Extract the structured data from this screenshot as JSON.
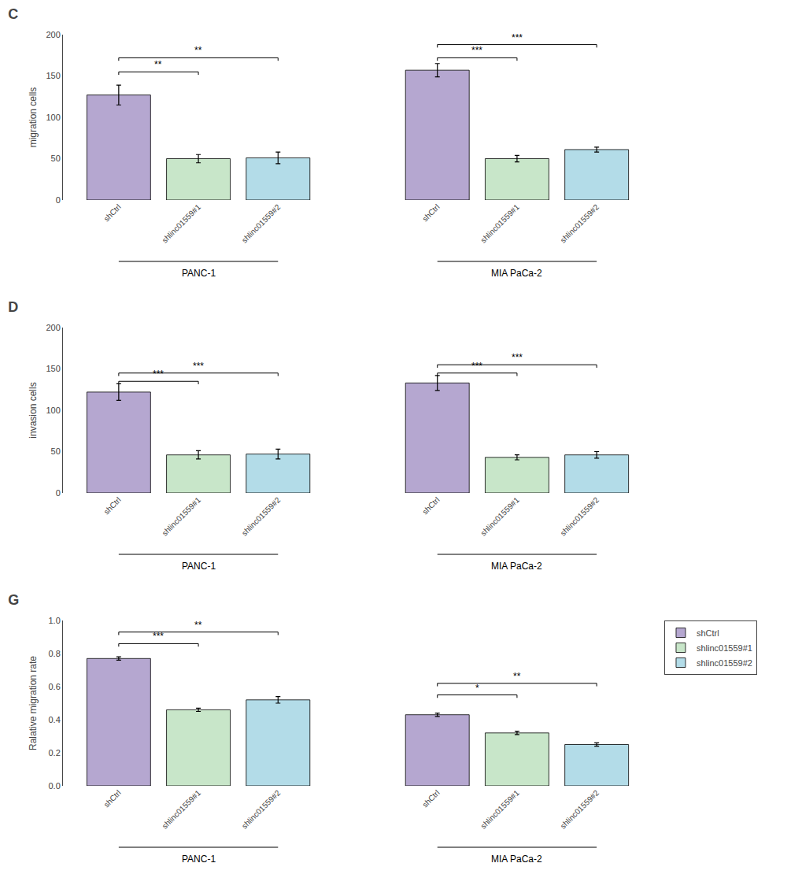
{
  "chart_data": [
    {
      "type": "bar",
      "title": "C",
      "ylabel": "migration cells",
      "categories": [
        "PANC-1",
        "MIA PaCa-2"
      ],
      "series": [
        {
          "name": "shCtrl",
          "color": "#b5a7d0",
          "values": [
            127,
            157
          ],
          "errors": [
            12,
            8
          ]
        },
        {
          "name": "shlinc01559#1",
          "color": "#c8e6c9",
          "values": [
            50,
            50
          ],
          "errors": [
            5,
            4
          ]
        },
        {
          "name": "shlinc01559#2",
          "color": "#b3dce8",
          "values": [
            51,
            61
          ],
          "errors": [
            7,
            3
          ]
        }
      ],
      "ylim": [
        0,
        200
      ],
      "yticks": [
        0,
        50,
        100,
        150,
        200
      ],
      "annotations": [
        {
          "text": "**",
          "group": "PANC-1",
          "from": "shCtrl",
          "to": "shlinc01559#1",
          "y": 155
        },
        {
          "text": "**",
          "group": "PANC-1",
          "from": "shCtrl",
          "to": "shlinc01559#2",
          "y": 172
        },
        {
          "text": "***",
          "group": "MIA PaCa-2",
          "from": "shCtrl",
          "to": "shlinc01559#1",
          "y": 172
        },
        {
          "text": "***",
          "group": "MIA PaCa-2",
          "from": "shCtrl",
          "to": "shlinc01559#2",
          "y": 188
        }
      ],
      "grid": false,
      "legend": false
    },
    {
      "type": "bar",
      "title": "D",
      "ylabel": "invasion cells",
      "categories": [
        "PANC-1",
        "MIA PaCa-2"
      ],
      "series": [
        {
          "name": "shCtrl",
          "color": "#b5a7d0",
          "values": [
            122,
            133
          ],
          "errors": [
            10,
            9
          ]
        },
        {
          "name": "shlinc01559#1",
          "color": "#c8e6c9",
          "values": [
            46,
            43
          ],
          "errors": [
            5,
            3
          ]
        },
        {
          "name": "shlinc01559#2",
          "color": "#b3dce8",
          "values": [
            47,
            46
          ],
          "errors": [
            6,
            4
          ]
        }
      ],
      "ylim": [
        0,
        200
      ],
      "yticks": [
        0,
        50,
        100,
        150,
        200
      ],
      "annotations": [
        {
          "text": "***",
          "group": "PANC-1",
          "from": "shCtrl",
          "to": "shlinc01559#1",
          "y": 135
        },
        {
          "text": "***",
          "group": "PANC-1",
          "from": "shCtrl",
          "to": "shlinc01559#2",
          "y": 145
        },
        {
          "text": "***",
          "group": "MIA PaCa-2",
          "from": "shCtrl",
          "to": "shlinc01559#1",
          "y": 145
        },
        {
          "text": "***",
          "group": "MIA PaCa-2",
          "from": "shCtrl",
          "to": "shlinc01559#2",
          "y": 155
        }
      ],
      "grid": false,
      "legend": false
    },
    {
      "type": "bar",
      "title": "G",
      "ylabel": "Ralative migration rate",
      "categories": [
        "PANC-1",
        "MIA PaCa-2"
      ],
      "series": [
        {
          "name": "shCtrl",
          "color": "#b5a7d0",
          "values": [
            0.77,
            0.43
          ],
          "errors": [
            0.01,
            0.01
          ]
        },
        {
          "name": "shlinc01559#1",
          "color": "#c8e6c9",
          "values": [
            0.46,
            0.32
          ],
          "errors": [
            0.01,
            0.01
          ]
        },
        {
          "name": "shlinc01559#2",
          "color": "#b3dce8",
          "values": [
            0.52,
            0.25
          ],
          "errors": [
            0.02,
            0.01
          ]
        }
      ],
      "ylim": [
        0.0,
        1.0
      ],
      "yticks": [
        {
          "value": 0,
          "label": "0.0"
        },
        0.2,
        0.4,
        0.6,
        0.8,
        {
          "value": 1,
          "label": "1.0"
        }
      ],
      "annotations": [
        {
          "text": "***",
          "group": "PANC-1",
          "from": "shCtrl",
          "to": "shlinc01559#1",
          "y": 0.86
        },
        {
          "text": "**",
          "group": "PANC-1",
          "from": "shCtrl",
          "to": "shlinc01559#2",
          "y": 0.93
        },
        {
          "text": "*",
          "group": "MIA PaCa-2",
          "from": "shCtrl",
          "to": "shlinc01559#1",
          "y": 0.55
        },
        {
          "text": "**",
          "group": "MIA PaCa-2",
          "from": "shCtrl",
          "to": "shlinc01559#2",
          "y": 0.62
        }
      ],
      "grid": false,
      "legend": "upper right"
    }
  ]
}
